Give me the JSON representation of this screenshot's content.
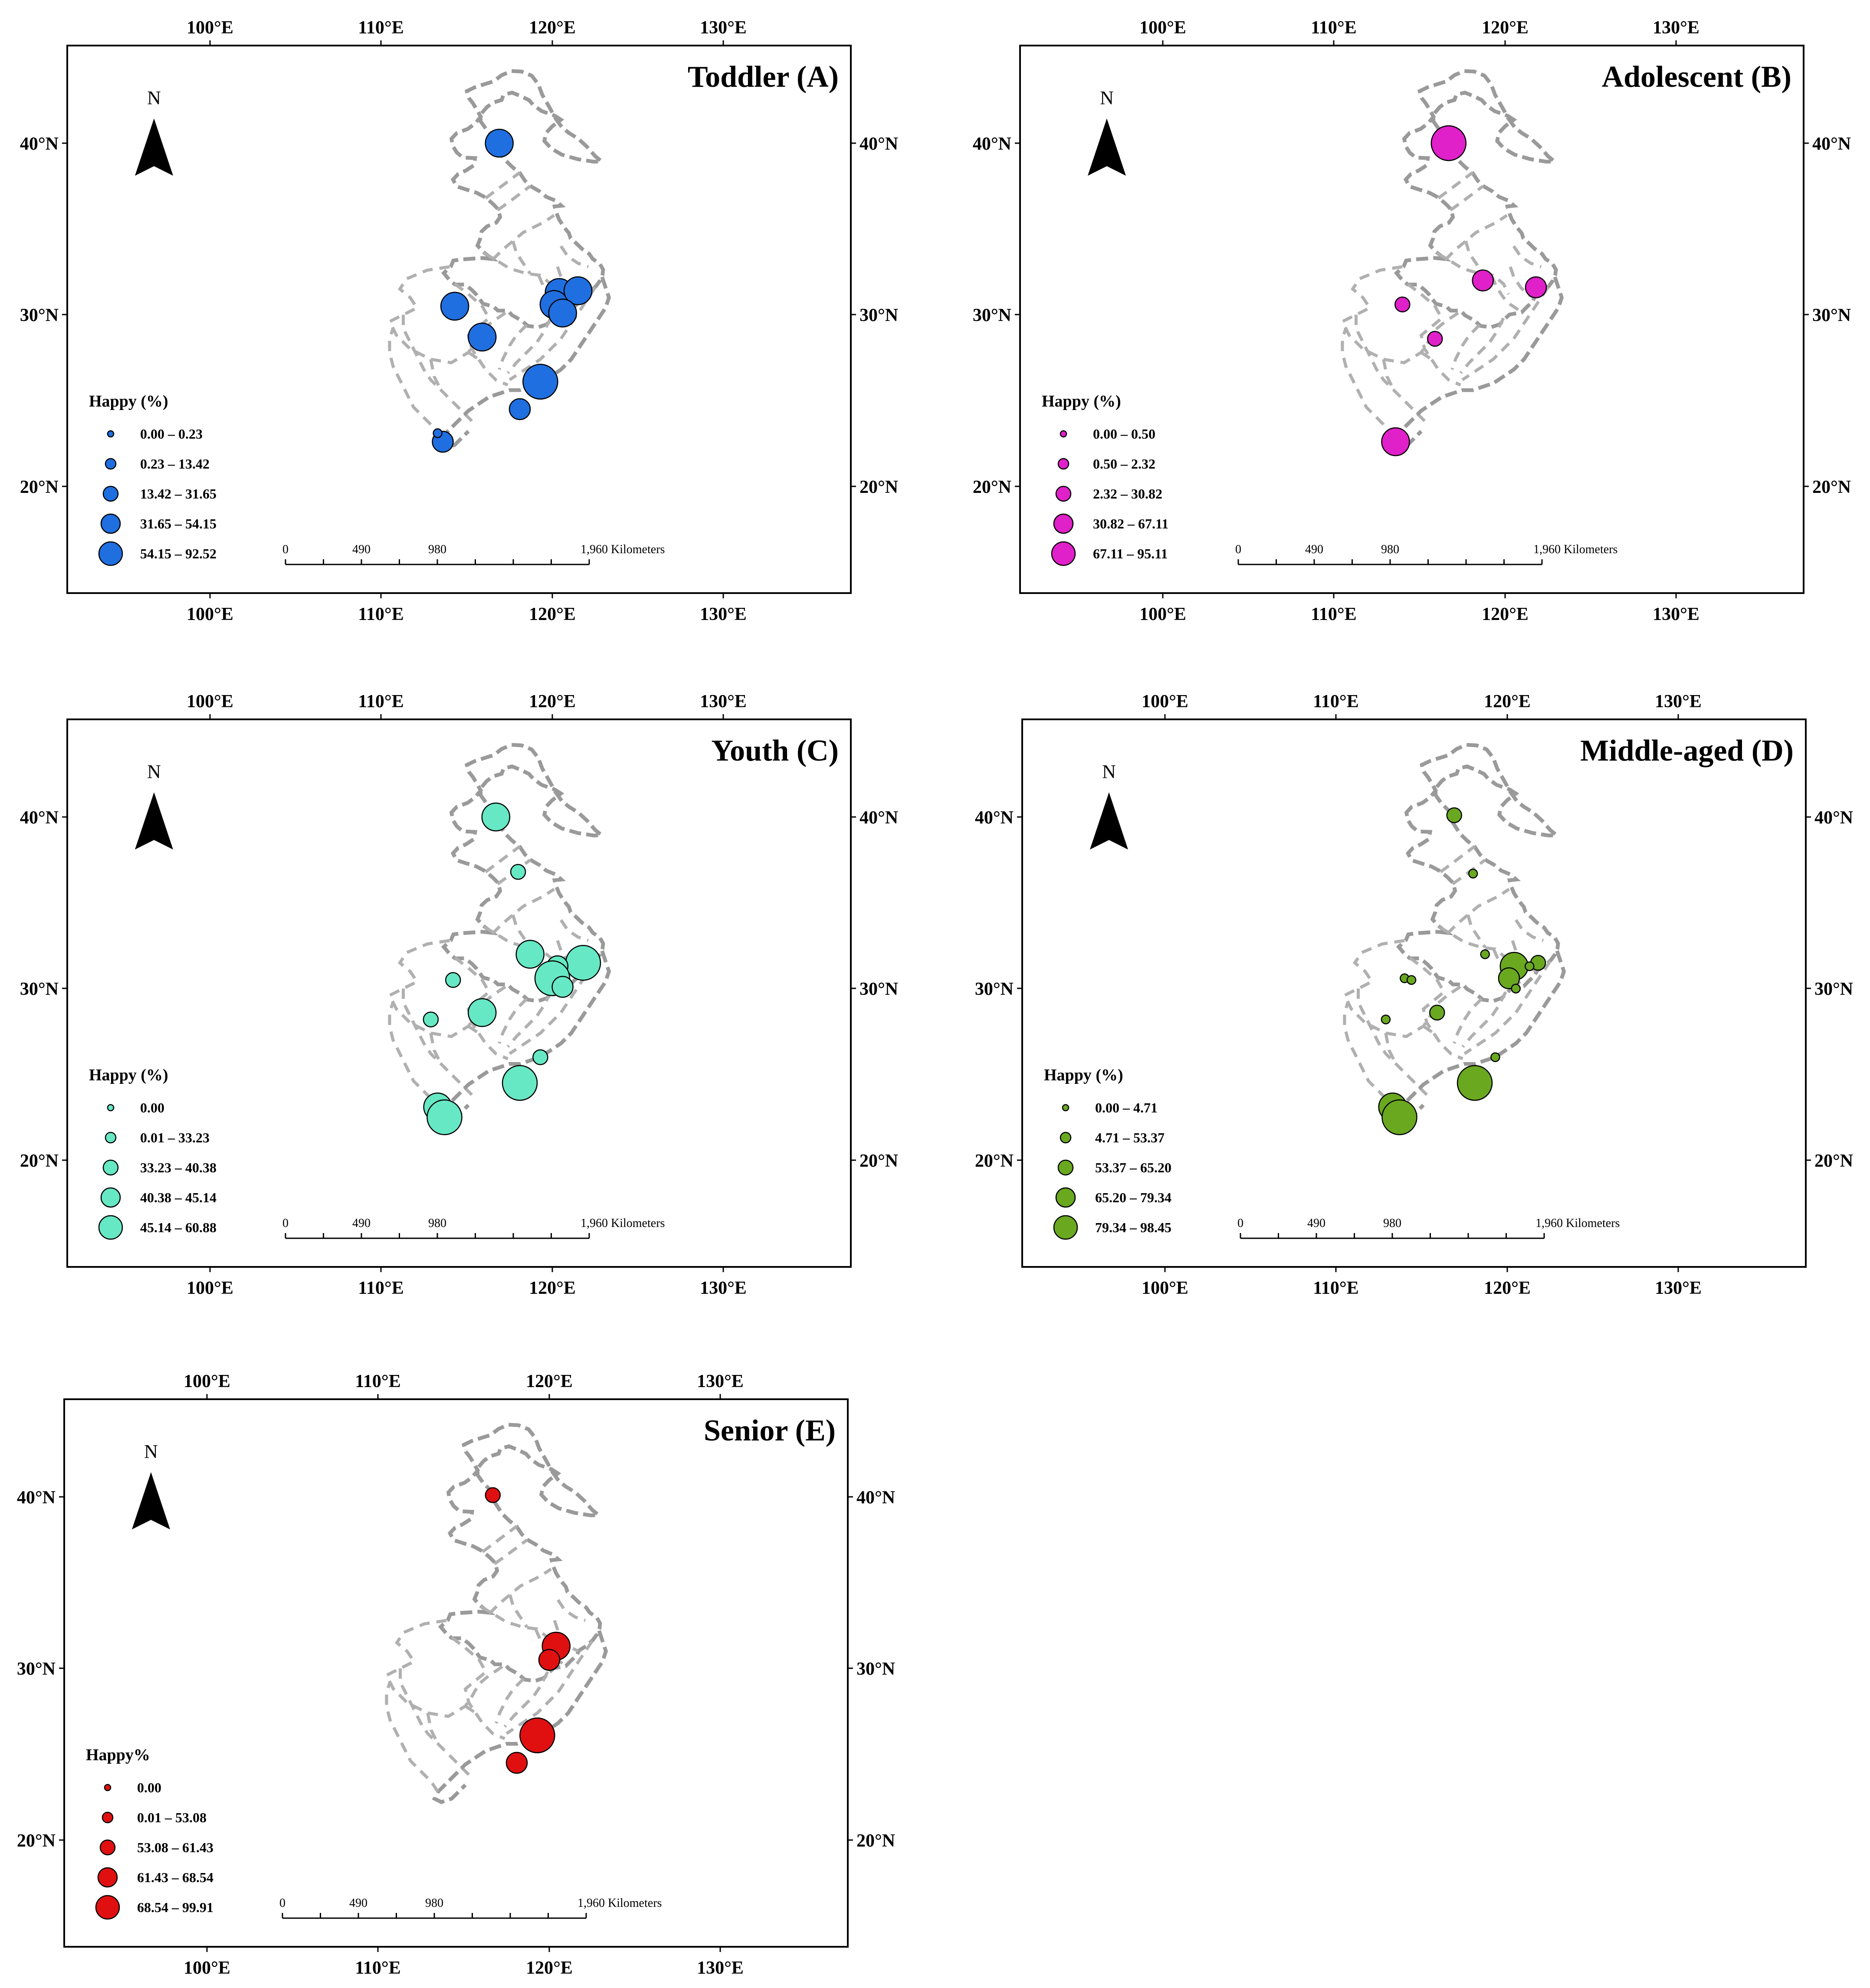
{
  "axes": {
    "lon_labels": [
      "100°E",
      "110°E",
      "120°E",
      "130°E"
    ],
    "lat_labels": [
      "40°N",
      "30°N",
      "20°N"
    ]
  },
  "north_label": "N",
  "scale_bar": {
    "labels": [
      "0",
      "490",
      "980",
      "1,960 Kilometers"
    ]
  },
  "panels": [
    {
      "title": "Toddler (A)",
      "color": "#1f6fe0",
      "legend_title": "Happy (%)",
      "legend": [
        "0.00 – 0.23",
        "0.23 – 13.42",
        "13.42 – 31.65",
        "31.65 – 54.15",
        "54.15 – 92.52"
      ],
      "points": [
        {
          "lon": 116.9,
          "lat": 40.0,
          "cls": 4
        },
        {
          "lon": 114.3,
          "lat": 30.5,
          "cls": 4
        },
        {
          "lon": 115.9,
          "lat": 28.7,
          "cls": 4
        },
        {
          "lon": 120.4,
          "lat": 31.3,
          "cls": 4
        },
        {
          "lon": 120.1,
          "lat": 30.6,
          "cls": 4
        },
        {
          "lon": 121.5,
          "lat": 31.4,
          "cls": 4
        },
        {
          "lon": 120.6,
          "lat": 30.1,
          "cls": 4
        },
        {
          "lon": 119.3,
          "lat": 26.1,
          "cls": 5
        },
        {
          "lon": 118.1,
          "lat": 24.5,
          "cls": 3
        },
        {
          "lon": 113.6,
          "lat": 22.6,
          "cls": 3
        },
        {
          "lon": 113.3,
          "lat": 23.1,
          "cls": 1
        }
      ]
    },
    {
      "title": "Adolescent (B)",
      "color": "#e020c8",
      "legend_title": "Happy (%)",
      "legend": [
        "0.00 – 0.50",
        "0.50 – 2.32",
        "2.32 – 30.82",
        "30.82 – 67.11",
        "67.11 – 95.11"
      ],
      "points": [
        {
          "lon": 116.7,
          "lat": 40.0,
          "cls": 5
        },
        {
          "lon": 118.7,
          "lat": 32.0,
          "cls": 3
        },
        {
          "lon": 121.8,
          "lat": 31.6,
          "cls": 3
        },
        {
          "lon": 114.0,
          "lat": 30.6,
          "cls": 2
        },
        {
          "lon": 115.9,
          "lat": 28.6,
          "cls": 2
        },
        {
          "lon": 113.6,
          "lat": 22.6,
          "cls": 4
        }
      ]
    },
    {
      "title": "Youth (C)",
      "color": "#66e8c4",
      "legend_title": "Happy (%)",
      "legend": [
        "0.00",
        "0.01 – 33.23",
        "33.23 – 40.38",
        "40.38 – 45.14",
        "45.14 – 60.88"
      ],
      "points": [
        {
          "lon": 116.7,
          "lat": 40.0,
          "cls": 4
        },
        {
          "lon": 118.0,
          "lat": 36.8,
          "cls": 2
        },
        {
          "lon": 118.7,
          "lat": 32.0,
          "cls": 4
        },
        {
          "lon": 121.8,
          "lat": 31.5,
          "cls": 5
        },
        {
          "lon": 120.3,
          "lat": 31.3,
          "cls": 3
        },
        {
          "lon": 120.0,
          "lat": 30.6,
          "cls": 5
        },
        {
          "lon": 120.6,
          "lat": 30.1,
          "cls": 3
        },
        {
          "lon": 114.2,
          "lat": 30.5,
          "cls": 2
        },
        {
          "lon": 112.9,
          "lat": 28.2,
          "cls": 2
        },
        {
          "lon": 115.9,
          "lat": 28.6,
          "cls": 4
        },
        {
          "lon": 119.3,
          "lat": 26.0,
          "cls": 2
        },
        {
          "lon": 118.1,
          "lat": 24.5,
          "cls": 5
        },
        {
          "lon": 113.3,
          "lat": 23.1,
          "cls": 4
        },
        {
          "lon": 113.7,
          "lat": 22.5,
          "cls": 5
        }
      ]
    },
    {
      "title": "Middle-aged (D)",
      "color": "#6aa820",
      "legend_title": "Happy (%)",
      "legend": [
        "0.00 – 4.71",
        "4.71 – 53.37",
        "53.37 – 65.20",
        "65.20 – 79.34",
        "79.34 – 98.45"
      ],
      "points": [
        {
          "lon": 116.9,
          "lat": 40.1,
          "cls": 2
        },
        {
          "lon": 118.0,
          "lat": 36.7,
          "cls": 1
        },
        {
          "lon": 118.7,
          "lat": 32.0,
          "cls": 1
        },
        {
          "lon": 120.4,
          "lat": 31.3,
          "cls": 4
        },
        {
          "lon": 121.8,
          "lat": 31.5,
          "cls": 2
        },
        {
          "lon": 121.3,
          "lat": 31.3,
          "cls": 1
        },
        {
          "lon": 120.1,
          "lat": 30.6,
          "cls": 3
        },
        {
          "lon": 120.5,
          "lat": 30.0,
          "cls": 1
        },
        {
          "lon": 114.0,
          "lat": 30.6,
          "cls": 1
        },
        {
          "lon": 114.4,
          "lat": 30.5,
          "cls": 1
        },
        {
          "lon": 115.9,
          "lat": 28.6,
          "cls": 2
        },
        {
          "lon": 112.9,
          "lat": 28.2,
          "cls": 1
        },
        {
          "lon": 119.3,
          "lat": 26.0,
          "cls": 1
        },
        {
          "lon": 118.1,
          "lat": 24.5,
          "cls": 5
        },
        {
          "lon": 113.3,
          "lat": 23.1,
          "cls": 4
        },
        {
          "lon": 113.7,
          "lat": 22.5,
          "cls": 5
        }
      ]
    },
    {
      "title": "Senior (E)",
      "color": "#e01010",
      "legend_title": "Happy%",
      "legend": [
        "0.00",
        "0.01 – 53.08",
        "53.08 – 61.43",
        "61.43 – 68.54",
        "68.54 – 99.91"
      ],
      "points": [
        {
          "lon": 116.7,
          "lat": 40.1,
          "cls": 2
        },
        {
          "lon": 120.4,
          "lat": 31.3,
          "cls": 4
        },
        {
          "lon": 120.0,
          "lat": 30.5,
          "cls": 3
        },
        {
          "lon": 119.3,
          "lat": 26.1,
          "cls": 5
        },
        {
          "lon": 118.1,
          "lat": 24.5,
          "cls": 3
        }
      ]
    }
  ]
}
